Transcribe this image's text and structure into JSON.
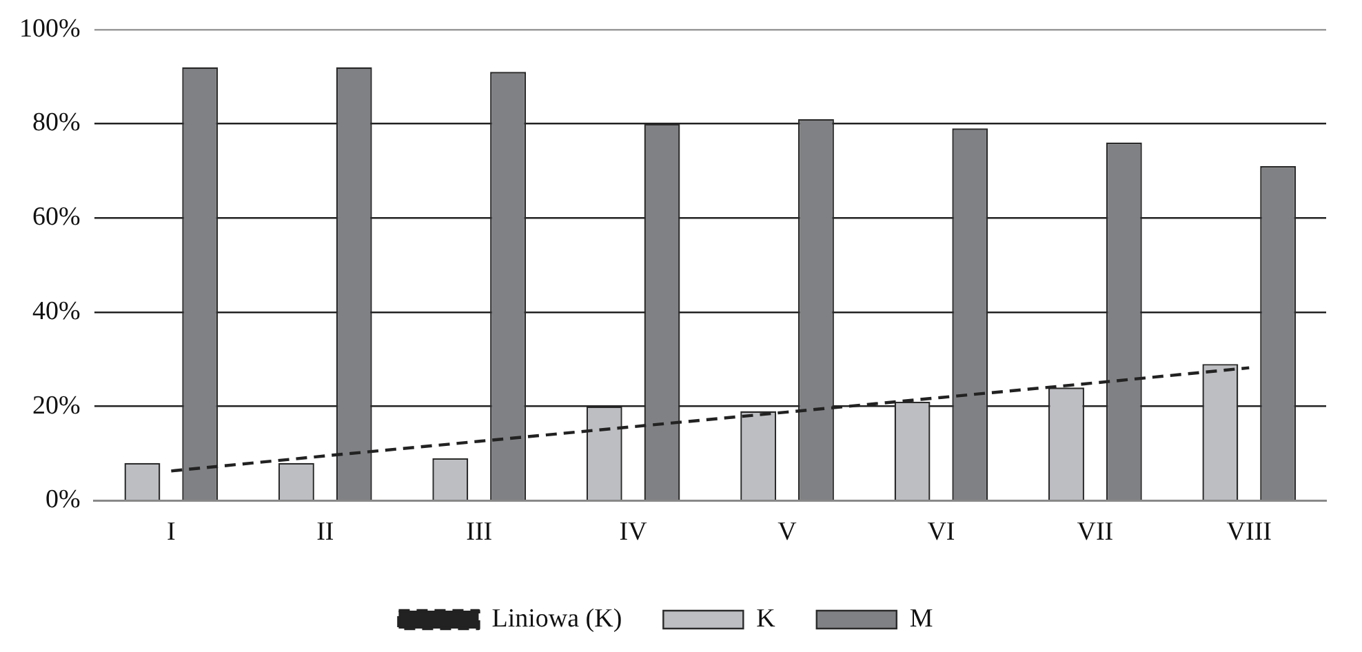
{
  "chart_data": {
    "type": "bar",
    "categories": [
      "I",
      "II",
      "III",
      "IV",
      "V",
      "VI",
      "VII",
      "VIII"
    ],
    "series": [
      {
        "name": "K",
        "color": "#bdbec2",
        "values": [
          8,
          8,
          9,
          20,
          19,
          21,
          24,
          29
        ]
      },
      {
        "name": "M",
        "color": "#808184",
        "values": [
          92,
          92,
          91,
          80,
          81,
          79,
          76,
          71
        ]
      },
      {
        "name": "Liniowa (K)",
        "type": "line",
        "color": "#222222",
        "line_style": "dashed",
        "marker": "none",
        "values": [
          6.3,
          9.5,
          12.6,
          15.7,
          18.8,
          21.9,
          25.0,
          28.2
        ]
      }
    ],
    "ylim": [
      0,
      100
    ],
    "yticks": [
      {
        "value": 0,
        "label": "0%"
      },
      {
        "value": 20,
        "label": "20%"
      },
      {
        "value": 40,
        "label": "40%"
      },
      {
        "value": 60,
        "label": "60%"
      },
      {
        "value": 80,
        "label": "80%"
      },
      {
        "value": 100,
        "label": "100%"
      }
    ],
    "grid": "y",
    "legend": "bottom"
  }
}
